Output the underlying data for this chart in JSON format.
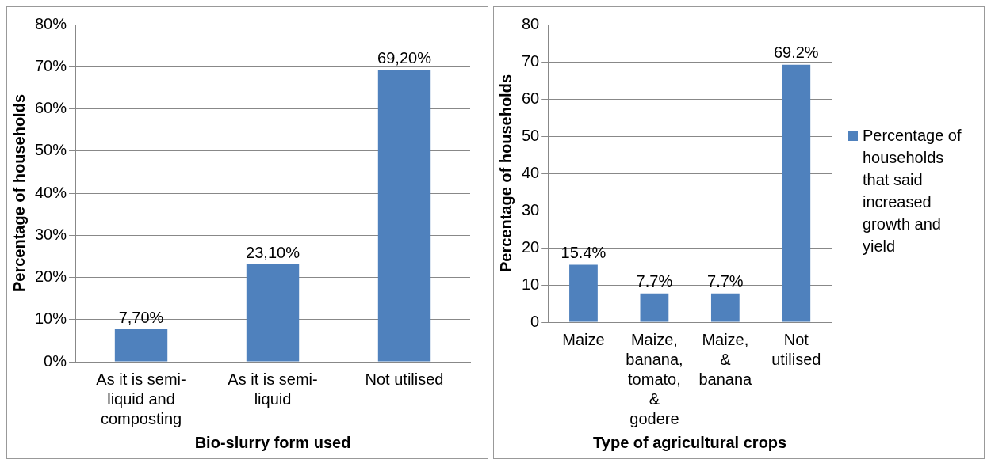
{
  "chart_data": [
    {
      "type": "bar",
      "categories": [
        "As it is semi-\nliquid and\ncomposting",
        "As it is semi-\nliquid",
        "Not utilised"
      ],
      "series": [
        {
          "color": "#4f81bd",
          "values": [
            7.7,
            23.1,
            69.2
          ],
          "value_labels": [
            "7,70%",
            "23,10%",
            "69,20%"
          ]
        }
      ],
      "xlabel": "Bio-slurry form used",
      "ylabel": "Percentage of households",
      "ylim": [
        0,
        80
      ],
      "yticks": [
        {
          "value": 0,
          "label": "0%"
        },
        {
          "value": 10,
          "label": "10%"
        },
        {
          "value": 20,
          "label": "20%"
        },
        {
          "value": 30,
          "label": "30%"
        },
        {
          "value": 40,
          "label": "40%"
        },
        {
          "value": 50,
          "label": "50%"
        },
        {
          "value": 60,
          "label": "60%"
        },
        {
          "value": 70,
          "label": "70%"
        },
        {
          "value": 80,
          "label": "80%"
        }
      ],
      "grid": "y",
      "legend": false
    },
    {
      "type": "bar",
      "categories": [
        "Maize",
        "Maize,\nbanana,\ntomato,\n&\ngodere",
        "Maize,\n&\nbanana",
        "Not\nutilised"
      ],
      "series": [
        {
          "name": "Percentage of households that said increased growth and yield",
          "color": "#4f81bd",
          "values": [
            15.4,
            7.7,
            7.7,
            69.2
          ],
          "value_labels": [
            "15.4%",
            "7.7%",
            "7.7%",
            "69.2%"
          ]
        }
      ],
      "xlabel": "Type of agricultural crops",
      "ylabel": "Percentage of households",
      "ylim": [
        0,
        80
      ],
      "yticks": [
        0,
        10,
        20,
        30,
        40,
        50,
        60,
        70,
        80
      ],
      "grid": "y",
      "legend": "right"
    }
  ]
}
